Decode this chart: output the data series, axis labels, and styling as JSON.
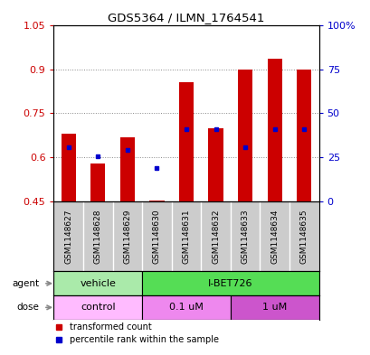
{
  "title": "GDS5364 / ILMN_1764541",
  "samples": [
    "GSM1148627",
    "GSM1148628",
    "GSM1148629",
    "GSM1148630",
    "GSM1148631",
    "GSM1148632",
    "GSM1148633",
    "GSM1148634",
    "GSM1148635"
  ],
  "bar_bottoms": [
    0.45,
    0.45,
    0.45,
    0.45,
    0.45,
    0.45,
    0.45,
    0.45,
    0.45
  ],
  "bar_tops": [
    0.68,
    0.58,
    0.67,
    0.455,
    0.855,
    0.7,
    0.9,
    0.935,
    0.9
  ],
  "blue_dots": [
    0.635,
    0.605,
    0.625,
    0.565,
    0.695,
    0.695,
    0.635,
    0.695,
    0.695
  ],
  "ylim_left": [
    0.45,
    1.05
  ],
  "ylim_right": [
    0,
    100
  ],
  "yticks_left": [
    0.45,
    0.6,
    0.75,
    0.9,
    1.05
  ],
  "yticks_right": [
    0,
    25,
    50,
    75,
    100
  ],
  "ytick_labels_left": [
    "0.45",
    "0.6",
    "0.75",
    "0.9",
    "1.05"
  ],
  "ytick_labels_right": [
    "0",
    "25",
    "50",
    "75",
    "100%"
  ],
  "bar_color": "#cc0000",
  "dot_color": "#0000cc",
  "agent_groups": [
    {
      "label": "vehicle",
      "start": 0,
      "end": 3,
      "color": "#aaeaaa"
    },
    {
      "label": "I-BET726",
      "start": 3,
      "end": 9,
      "color": "#55dd55"
    }
  ],
  "dose_groups": [
    {
      "label": "control",
      "start": 0,
      "end": 3,
      "color": "#ffbbff"
    },
    {
      "label": "0.1 uM",
      "start": 3,
      "end": 6,
      "color": "#ee88ee"
    },
    {
      "label": "1 uM",
      "start": 6,
      "end": 9,
      "color": "#cc55cc"
    }
  ],
  "legend_items": [
    {
      "label": "transformed count",
      "color": "#cc0000"
    },
    {
      "label": "percentile rank within the sample",
      "color": "#0000cc"
    }
  ],
  "bar_width": 0.5,
  "hgrid_at": [
    0.6,
    0.75,
    0.9
  ],
  "sample_bg": "#cccccc",
  "left_label_color": "#cc0000",
  "right_label_color": "#0000cc"
}
